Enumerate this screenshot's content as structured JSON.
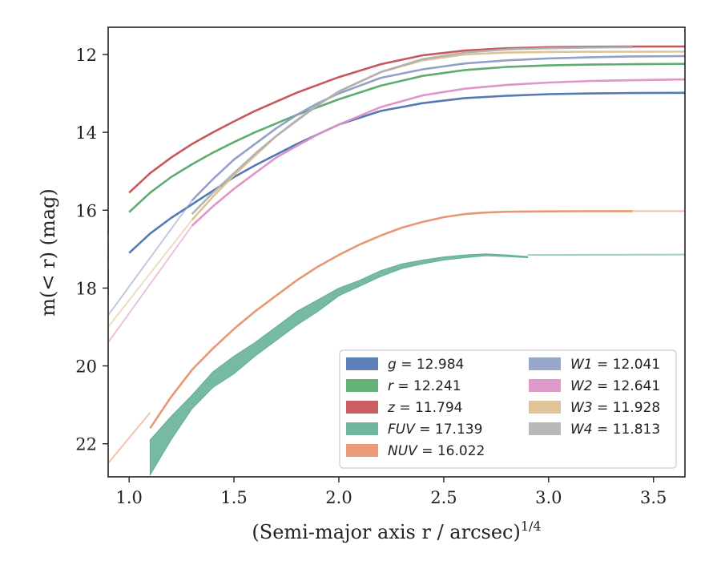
{
  "chart_data": {
    "type": "line",
    "title": "",
    "xlabel": "(Semi-major axis r / arcsec)",
    "xlabel_exponent": "1/4",
    "ylabel": "m(< r) (mag)",
    "xlim": [
      0.9,
      3.65
    ],
    "ylim": [
      22.85,
      11.3
    ],
    "y_inverted": true,
    "grid": false,
    "legend_position": "lower-right",
    "legend_columns": 2,
    "x_ticks": [
      1.0,
      1.5,
      2.0,
      2.5,
      3.0,
      3.5
    ],
    "x_tick_labels": [
      "1.0",
      "1.5",
      "2.0",
      "2.5",
      "3.0",
      "3.5"
    ],
    "y_ticks": [
      12,
      14,
      16,
      18,
      20,
      22
    ],
    "y_tick_labels": [
      "12",
      "14",
      "16",
      "18",
      "20",
      "22"
    ],
    "series": [
      {
        "name": "g = 12.984",
        "label_var": "g",
        "label_val": "12.984",
        "color": "#4c72b0",
        "x": [
          1.0,
          1.1,
          1.2,
          1.3,
          1.4,
          1.5,
          1.6,
          1.8,
          2.0,
          2.2,
          2.4,
          2.6,
          2.8,
          3.0,
          3.2,
          3.4,
          3.65
        ],
        "y": [
          17.1,
          16.6,
          16.2,
          15.85,
          15.5,
          15.15,
          14.85,
          14.3,
          13.8,
          13.45,
          13.25,
          13.12,
          13.06,
          13.02,
          13.0,
          12.99,
          12.985
        ],
        "lead": [
          [
            0.9,
            18.2
          ],
          [
            0.9,
            17.5
          ]
        ]
      },
      {
        "name": "r = 12.241",
        "label_var": "r",
        "label_val": "12.241",
        "color": "#55a868",
        "x": [
          1.0,
          1.1,
          1.2,
          1.3,
          1.4,
          1.5,
          1.6,
          1.8,
          2.0,
          2.2,
          2.4,
          2.6,
          2.8,
          3.0,
          3.2,
          3.4,
          3.65
        ],
        "y": [
          16.05,
          15.55,
          15.15,
          14.82,
          14.52,
          14.25,
          14.0,
          13.55,
          13.15,
          12.8,
          12.55,
          12.4,
          12.32,
          12.28,
          12.26,
          12.25,
          12.241
        ],
        "lead": [
          [
            0.9,
            16.8
          ],
          [
            0.9,
            17.3
          ]
        ]
      },
      {
        "name": "z = 11.794",
        "label_var": "z",
        "label_val": "11.794",
        "color": "#c44e52",
        "x": [
          1.0,
          1.1,
          1.2,
          1.3,
          1.4,
          1.5,
          1.6,
          1.8,
          2.0,
          2.2,
          2.4,
          2.6,
          2.8,
          3.0,
          3.2,
          3.4,
          3.65
        ],
        "y": [
          15.55,
          15.05,
          14.65,
          14.3,
          14.0,
          13.72,
          13.45,
          12.98,
          12.58,
          12.25,
          12.02,
          11.9,
          11.84,
          11.81,
          11.8,
          11.797,
          11.794
        ],
        "lead": [
          [
            0.9,
            16.1
          ],
          [
            0.9,
            16.6
          ]
        ]
      },
      {
        "name": "FUV = 17.139",
        "label_var": "FUV",
        "label_val": "17.139",
        "color": "#5fae92",
        "band": true,
        "x": [
          1.1,
          1.2,
          1.3,
          1.4,
          1.5,
          1.6,
          1.7,
          1.8,
          1.9,
          2.0,
          2.1,
          2.2,
          2.3,
          2.4,
          2.5,
          2.6,
          2.7,
          2.8,
          2.9
        ],
        "y_low": [
          22.8,
          21.9,
          21.1,
          20.55,
          20.2,
          19.75,
          19.35,
          18.95,
          18.6,
          18.2,
          17.95,
          17.7,
          17.5,
          17.38,
          17.28,
          17.22,
          17.17,
          17.19,
          17.22
        ],
        "y_high": [
          21.9,
          21.3,
          20.75,
          20.15,
          19.75,
          19.4,
          19.0,
          18.6,
          18.3,
          18.0,
          17.8,
          17.55,
          17.38,
          17.28,
          17.2,
          17.15,
          17.12,
          17.15,
          17.19
        ],
        "tail": [
          [
            2.9,
            17.15
          ],
          [
            3.65,
            17.139
          ]
        ],
        "lead": [
          [
            0.9,
            23.7
          ],
          [
            1.0,
            22.9
          ]
        ]
      },
      {
        "name": "NUV = 16.022",
        "label_var": "NUV",
        "label_val": "16.022",
        "color": "#e8916c",
        "x": [
          1.1,
          1.2,
          1.3,
          1.4,
          1.5,
          1.6,
          1.7,
          1.8,
          1.9,
          2.0,
          2.1,
          2.2,
          2.3,
          2.4,
          2.5,
          2.6,
          2.7,
          2.8,
          3.0,
          3.2,
          3.4
        ],
        "y": [
          21.6,
          20.8,
          20.1,
          19.55,
          19.05,
          18.6,
          18.2,
          17.8,
          17.45,
          17.15,
          16.88,
          16.65,
          16.45,
          16.3,
          16.18,
          16.1,
          16.06,
          16.04,
          16.03,
          16.025,
          16.022
        ],
        "tail": [
          [
            3.4,
            16.022
          ],
          [
            3.65,
            16.022
          ]
        ],
        "lead": [
          [
            0.9,
            22.5
          ],
          [
            1.1,
            21.2
          ]
        ]
      },
      {
        "name": "W1 = 12.041",
        "label_var": "W1",
        "label_val": "12.041",
        "color": "#8c9cc4",
        "x": [
          1.3,
          1.4,
          1.5,
          1.6,
          1.7,
          1.8,
          1.9,
          2.0,
          2.2,
          2.4,
          2.6,
          2.8,
          3.0,
          3.2,
          3.4,
          3.65
        ],
        "y": [
          15.75,
          15.2,
          14.7,
          14.3,
          13.9,
          13.55,
          13.25,
          13.0,
          12.6,
          12.38,
          12.23,
          12.15,
          12.1,
          12.07,
          12.05,
          12.041
        ],
        "lead": [
          [
            0.9,
            18.7
          ],
          [
            1.3,
            15.75
          ]
        ]
      },
      {
        "name": "W2 = 12.641",
        "label_var": "W2",
        "label_val": "12.641",
        "color": "#dd8fc4",
        "x": [
          1.3,
          1.4,
          1.5,
          1.6,
          1.7,
          1.8,
          1.9,
          2.0,
          2.2,
          2.4,
          2.6,
          2.8,
          3.0,
          3.2,
          3.4,
          3.65
        ],
        "y": [
          16.4,
          15.9,
          15.45,
          15.05,
          14.65,
          14.35,
          14.05,
          13.8,
          13.35,
          13.05,
          12.88,
          12.78,
          12.72,
          12.68,
          12.66,
          12.641
        ],
        "lead": [
          [
            0.9,
            19.4
          ],
          [
            1.3,
            16.4
          ]
        ]
      },
      {
        "name": "W3 = 11.928",
        "label_var": "W3",
        "label_val": "11.928",
        "color": "#dcc08f",
        "x": [
          1.3,
          1.4,
          1.5,
          1.6,
          1.7,
          1.8,
          1.9,
          2.0,
          2.2,
          2.4,
          2.6,
          2.8,
          3.0,
          3.2,
          3.4,
          3.65
        ],
        "y": [
          16.25,
          15.65,
          15.1,
          14.6,
          14.1,
          13.68,
          13.3,
          12.95,
          12.45,
          12.15,
          12.0,
          11.95,
          11.935,
          11.93,
          11.928,
          11.928
        ],
        "lead": [
          [
            0.9,
            19.0
          ],
          [
            1.3,
            16.25
          ]
        ]
      },
      {
        "name": "W4 = 11.813",
        "label_var": "W4",
        "label_val": "11.813",
        "color": "#b0b0b0",
        "x": [
          1.3,
          1.4,
          1.5,
          1.6,
          1.7,
          1.8,
          1.9,
          2.0,
          2.2,
          2.4,
          2.6,
          2.8,
          3.0,
          3.2,
          3.4
        ],
        "y": [
          16.1,
          15.55,
          15.05,
          14.55,
          14.1,
          13.7,
          13.3,
          12.95,
          12.45,
          12.12,
          11.95,
          11.87,
          11.84,
          11.82,
          11.813
        ]
      }
    ]
  }
}
